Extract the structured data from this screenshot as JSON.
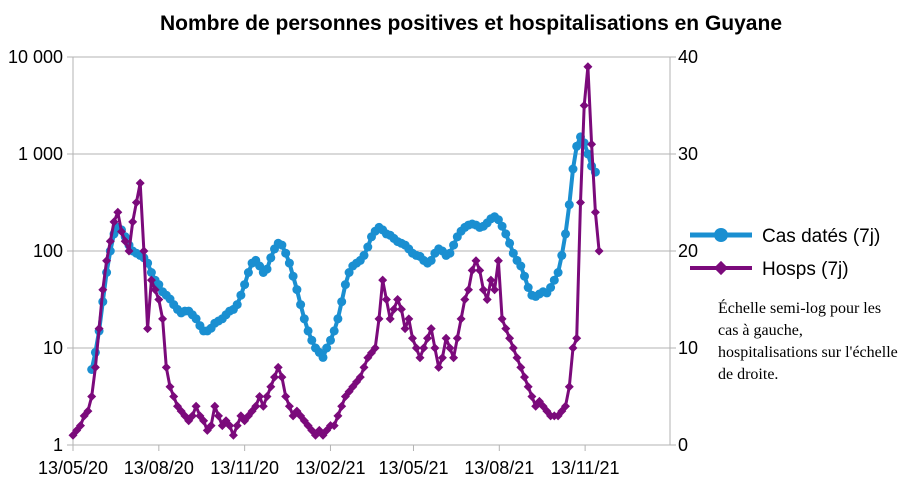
{
  "chart_data": {
    "type": "line",
    "title": "Nombre de personnes positives et hospitalisations en Guyane",
    "x_tick_labels": [
      "13/05/20",
      "13/08/20",
      "13/11/20",
      "13/02/21",
      "13/05/21",
      "13/08/21",
      "13/11/21"
    ],
    "x_range_days": [
      0,
      640
    ],
    "x_tick_days": [
      0,
      92,
      184,
      276,
      365,
      457,
      549
    ],
    "y_left": {
      "scale": "log",
      "range": [
        1,
        10000
      ],
      "tick_values": [
        1,
        10,
        100,
        1000,
        10000
      ],
      "tick_labels": [
        "1",
        "10",
        "100",
        "1 000",
        "10 000"
      ]
    },
    "y_right": {
      "scale": "linear",
      "range": [
        0,
        40
      ],
      "tick_values": [
        0,
        10,
        20,
        30,
        40
      ],
      "tick_labels": [
        "0",
        "10",
        "20",
        "30",
        "40"
      ]
    },
    "grid": true,
    "series": [
      {
        "name": "Cas datés (7j)",
        "axis": "left",
        "color": "#1a8fd1",
        "marker": "circle",
        "points": [
          [
            20,
            6
          ],
          [
            24,
            9
          ],
          [
            28,
            15
          ],
          [
            32,
            30
          ],
          [
            36,
            60
          ],
          [
            40,
            100
          ],
          [
            44,
            150
          ],
          [
            48,
            175
          ],
          [
            52,
            165
          ],
          [
            56,
            140
          ],
          [
            60,
            115
          ],
          [
            64,
            100
          ],
          [
            68,
            95
          ],
          [
            72,
            90
          ],
          [
            76,
            85
          ],
          [
            80,
            75
          ],
          [
            84,
            60
          ],
          [
            88,
            50
          ],
          [
            92,
            45
          ],
          [
            96,
            38
          ],
          [
            100,
            35
          ],
          [
            104,
            32
          ],
          [
            108,
            28
          ],
          [
            112,
            25
          ],
          [
            116,
            23
          ],
          [
            120,
            24
          ],
          [
            124,
            24
          ],
          [
            128,
            22
          ],
          [
            132,
            20
          ],
          [
            136,
            17
          ],
          [
            140,
            15
          ],
          [
            144,
            15
          ],
          [
            148,
            16
          ],
          [
            152,
            18
          ],
          [
            156,
            19
          ],
          [
            160,
            20
          ],
          [
            164,
            22
          ],
          [
            168,
            24
          ],
          [
            172,
            25
          ],
          [
            176,
            28
          ],
          [
            180,
            35
          ],
          [
            184,
            45
          ],
          [
            188,
            60
          ],
          [
            192,
            75
          ],
          [
            196,
            80
          ],
          [
            200,
            70
          ],
          [
            204,
            60
          ],
          [
            208,
            65
          ],
          [
            212,
            85
          ],
          [
            216,
            105
          ],
          [
            220,
            120
          ],
          [
            224,
            115
          ],
          [
            228,
            95
          ],
          [
            232,
            75
          ],
          [
            236,
            55
          ],
          [
            240,
            40
          ],
          [
            244,
            28
          ],
          [
            248,
            20
          ],
          [
            252,
            15
          ],
          [
            256,
            12
          ],
          [
            260,
            10
          ],
          [
            264,
            9
          ],
          [
            268,
            8
          ],
          [
            272,
            10
          ],
          [
            276,
            12
          ],
          [
            280,
            15
          ],
          [
            284,
            20
          ],
          [
            288,
            30
          ],
          [
            292,
            45
          ],
          [
            296,
            60
          ],
          [
            300,
            70
          ],
          [
            304,
            75
          ],
          [
            308,
            80
          ],
          [
            312,
            90
          ],
          [
            316,
            110
          ],
          [
            320,
            140
          ],
          [
            324,
            160
          ],
          [
            328,
            175
          ],
          [
            332,
            165
          ],
          [
            336,
            150
          ],
          [
            340,
            145
          ],
          [
            344,
            135
          ],
          [
            348,
            125
          ],
          [
            352,
            120
          ],
          [
            356,
            115
          ],
          [
            360,
            105
          ],
          [
            364,
            95
          ],
          [
            368,
            90
          ],
          [
            372,
            88
          ],
          [
            376,
            80
          ],
          [
            380,
            75
          ],
          [
            384,
            80
          ],
          [
            388,
            95
          ],
          [
            392,
            105
          ],
          [
            396,
            100
          ],
          [
            400,
            90
          ],
          [
            404,
            95
          ],
          [
            408,
            115
          ],
          [
            412,
            140
          ],
          [
            416,
            160
          ],
          [
            420,
            175
          ],
          [
            424,
            185
          ],
          [
            428,
            190
          ],
          [
            432,
            185
          ],
          [
            436,
            175
          ],
          [
            440,
            180
          ],
          [
            444,
            195
          ],
          [
            448,
            215
          ],
          [
            452,
            225
          ],
          [
            456,
            210
          ],
          [
            460,
            180
          ],
          [
            464,
            150
          ],
          [
            468,
            120
          ],
          [
            472,
            95
          ],
          [
            476,
            80
          ],
          [
            480,
            70
          ],
          [
            484,
            55
          ],
          [
            488,
            42
          ],
          [
            492,
            35
          ],
          [
            496,
            34
          ],
          [
            500,
            36
          ],
          [
            504,
            38
          ],
          [
            508,
            37
          ],
          [
            512,
            42
          ],
          [
            516,
            50
          ],
          [
            520,
            60
          ],
          [
            524,
            90
          ],
          [
            528,
            150
          ],
          [
            532,
            300
          ],
          [
            536,
            700
          ],
          [
            540,
            1200
          ],
          [
            544,
            1500
          ],
          [
            548,
            1300
          ],
          [
            552,
            1000
          ],
          [
            556,
            750
          ],
          [
            560,
            650
          ]
        ]
      },
      {
        "name": "Hosps (7j)",
        "axis": "right",
        "color": "#7b0a7b",
        "marker": "diamond",
        "points": [
          [
            0,
            1
          ],
          [
            4,
            1.5
          ],
          [
            8,
            2
          ],
          [
            12,
            3
          ],
          [
            16,
            3.5
          ],
          [
            20,
            5
          ],
          [
            24,
            8
          ],
          [
            28,
            12
          ],
          [
            32,
            16
          ],
          [
            36,
            19
          ],
          [
            40,
            21
          ],
          [
            44,
            23
          ],
          [
            48,
            24
          ],
          [
            52,
            22
          ],
          [
            56,
            21
          ],
          [
            60,
            20
          ],
          [
            64,
            23
          ],
          [
            68,
            25
          ],
          [
            72,
            27
          ],
          [
            76,
            20
          ],
          [
            80,
            12
          ],
          [
            84,
            17
          ],
          [
            88,
            16
          ],
          [
            92,
            15
          ],
          [
            96,
            13
          ],
          [
            100,
            8
          ],
          [
            104,
            6
          ],
          [
            108,
            5
          ],
          [
            112,
            4
          ],
          [
            116,
            3.5
          ],
          [
            120,
            3
          ],
          [
            124,
            2.5
          ],
          [
            128,
            3
          ],
          [
            132,
            4
          ],
          [
            136,
            3
          ],
          [
            140,
            2.5
          ],
          [
            144,
            1.5
          ],
          [
            148,
            2
          ],
          [
            152,
            4
          ],
          [
            156,
            3
          ],
          [
            160,
            2
          ],
          [
            164,
            2.5
          ],
          [
            168,
            2
          ],
          [
            172,
            1
          ],
          [
            176,
            2
          ],
          [
            180,
            3
          ],
          [
            184,
            2.5
          ],
          [
            188,
            3
          ],
          [
            192,
            3.5
          ],
          [
            196,
            4
          ],
          [
            200,
            5
          ],
          [
            204,
            4
          ],
          [
            208,
            5
          ],
          [
            212,
            6
          ],
          [
            216,
            7
          ],
          [
            220,
            8
          ],
          [
            224,
            7
          ],
          [
            228,
            5
          ],
          [
            232,
            4
          ],
          [
            236,
            3
          ],
          [
            240,
            3.5
          ],
          [
            244,
            3
          ],
          [
            248,
            2.5
          ],
          [
            252,
            2
          ],
          [
            256,
            1.5
          ],
          [
            260,
            1
          ],
          [
            264,
            1.5
          ],
          [
            268,
            1
          ],
          [
            272,
            1.5
          ],
          [
            276,
            2
          ],
          [
            280,
            2
          ],
          [
            284,
            3
          ],
          [
            288,
            4
          ],
          [
            292,
            5
          ],
          [
            296,
            5.5
          ],
          [
            300,
            6
          ],
          [
            304,
            6.5
          ],
          [
            308,
            7
          ],
          [
            312,
            8
          ],
          [
            316,
            9
          ],
          [
            320,
            9.5
          ],
          [
            324,
            10
          ],
          [
            328,
            13
          ],
          [
            332,
            17
          ],
          [
            336,
            15
          ],
          [
            340,
            13
          ],
          [
            344,
            14
          ],
          [
            348,
            15
          ],
          [
            352,
            14
          ],
          [
            356,
            12
          ],
          [
            360,
            13
          ],
          [
            364,
            11
          ],
          [
            368,
            10
          ],
          [
            372,
            9
          ],
          [
            376,
            10
          ],
          [
            380,
            11
          ],
          [
            384,
            12
          ],
          [
            388,
            10
          ],
          [
            392,
            8
          ],
          [
            396,
            9
          ],
          [
            400,
            11
          ],
          [
            404,
            10
          ],
          [
            408,
            9
          ],
          [
            412,
            11
          ],
          [
            416,
            13
          ],
          [
            420,
            15
          ],
          [
            424,
            16
          ],
          [
            428,
            18
          ],
          [
            432,
            19
          ],
          [
            436,
            18
          ],
          [
            440,
            16
          ],
          [
            444,
            15
          ],
          [
            448,
            17
          ],
          [
            452,
            16
          ],
          [
            456,
            19
          ],
          [
            460,
            13
          ],
          [
            464,
            12
          ],
          [
            468,
            11
          ],
          [
            472,
            10
          ],
          [
            476,
            9
          ],
          [
            480,
            8
          ],
          [
            484,
            7
          ],
          [
            488,
            6
          ],
          [
            492,
            5
          ],
          [
            496,
            4
          ],
          [
            500,
            4.5
          ],
          [
            504,
            4
          ],
          [
            508,
            3.5
          ],
          [
            512,
            3
          ],
          [
            516,
            3
          ],
          [
            520,
            3
          ],
          [
            524,
            3.5
          ],
          [
            528,
            4
          ],
          [
            532,
            6
          ],
          [
            536,
            10
          ],
          [
            540,
            11
          ],
          [
            544,
            25
          ],
          [
            548,
            35
          ],
          [
            552,
            39
          ],
          [
            556,
            31
          ],
          [
            560,
            24
          ],
          [
            564,
            20
          ]
        ]
      }
    ]
  },
  "legend": [
    {
      "label": "Cas datés (7j)"
    },
    {
      "label": "Hosps (7j)"
    }
  ],
  "note": "Échelle semi-log pour les cas à gauche, hospitalisations sur l'échelle de droite."
}
